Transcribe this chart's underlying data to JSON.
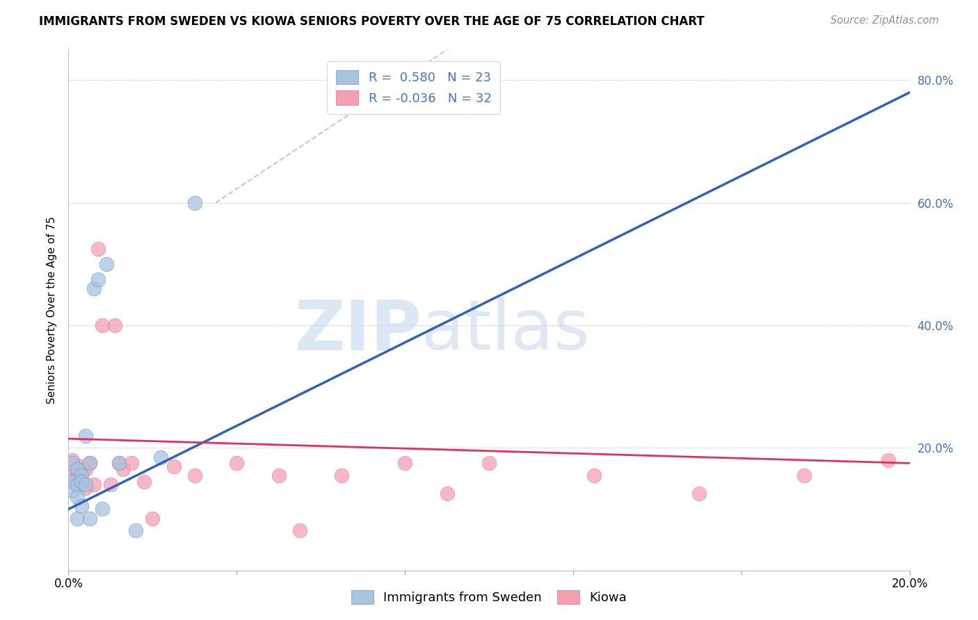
{
  "title": "IMMIGRANTS FROM SWEDEN VS KIOWA SENIORS POVERTY OVER THE AGE OF 75 CORRELATION CHART",
  "source": "Source: ZipAtlas.com",
  "ylabel": "Seniors Poverty Over the Age of 75",
  "xlim": [
    0.0,
    0.2
  ],
  "ylim": [
    0.0,
    0.85
  ],
  "yticks": [
    0.0,
    0.2,
    0.4,
    0.6,
    0.8
  ],
  "xtick_positions": [
    0.0,
    0.04,
    0.08,
    0.12,
    0.16,
    0.2
  ],
  "xtick_labels": [
    "0.0%",
    "",
    "",
    "",
    "",
    "20.0%"
  ],
  "color_blue": "#a8c4e0",
  "color_pink": "#f4a0b0",
  "line_blue": "#3060c0",
  "line_pink": "#e03060",
  "line_dash": "#c0c8d8",
  "sweden_x": [
    0.001,
    0.001,
    0.001,
    0.002,
    0.002,
    0.002,
    0.002,
    0.003,
    0.003,
    0.003,
    0.004,
    0.004,
    0.005,
    0.005,
    0.006,
    0.007,
    0.008,
    0.009,
    0.012,
    0.016,
    0.022,
    0.03,
    0.075
  ],
  "sweden_y": [
    0.175,
    0.145,
    0.13,
    0.165,
    0.14,
    0.12,
    0.085,
    0.155,
    0.145,
    0.105,
    0.22,
    0.14,
    0.175,
    0.085,
    0.46,
    0.475,
    0.1,
    0.5,
    0.175,
    0.065,
    0.185,
    0.6,
    0.78
  ],
  "kiowa_x": [
    0.001,
    0.001,
    0.002,
    0.002,
    0.003,
    0.003,
    0.004,
    0.004,
    0.005,
    0.006,
    0.007,
    0.008,
    0.01,
    0.011,
    0.012,
    0.013,
    0.015,
    0.018,
    0.02,
    0.025,
    0.03,
    0.04,
    0.05,
    0.055,
    0.065,
    0.08,
    0.09,
    0.1,
    0.125,
    0.15,
    0.175,
    0.195
  ],
  "kiowa_y": [
    0.155,
    0.18,
    0.155,
    0.165,
    0.145,
    0.17,
    0.135,
    0.165,
    0.175,
    0.14,
    0.525,
    0.4,
    0.14,
    0.4,
    0.175,
    0.165,
    0.175,
    0.145,
    0.085,
    0.17,
    0.155,
    0.175,
    0.155,
    0.065,
    0.155,
    0.175,
    0.125,
    0.175,
    0.155,
    0.125,
    0.155,
    0.18
  ],
  "blue_line_x": [
    0.0,
    0.2
  ],
  "blue_line_y": [
    0.1,
    0.78
  ],
  "pink_line_x": [
    0.0,
    0.2
  ],
  "pink_line_y": [
    0.215,
    0.175
  ],
  "dash_line_x": [
    0.04,
    0.085
  ],
  "dash_line_y": [
    0.63,
    0.85
  ],
  "watermark_text": "ZIPatlas",
  "watermark_zip": "ZIP",
  "background_color": "#ffffff",
  "grid_color": "#d8d8d8",
  "legend_r1": "R =  0.580   N = 23",
  "legend_r2": "R = -0.036   N = 32",
  "legend_color": "#4472c4",
  "ytick_color": "#4472c4",
  "title_fontsize": 12,
  "axis_fontsize": 12
}
